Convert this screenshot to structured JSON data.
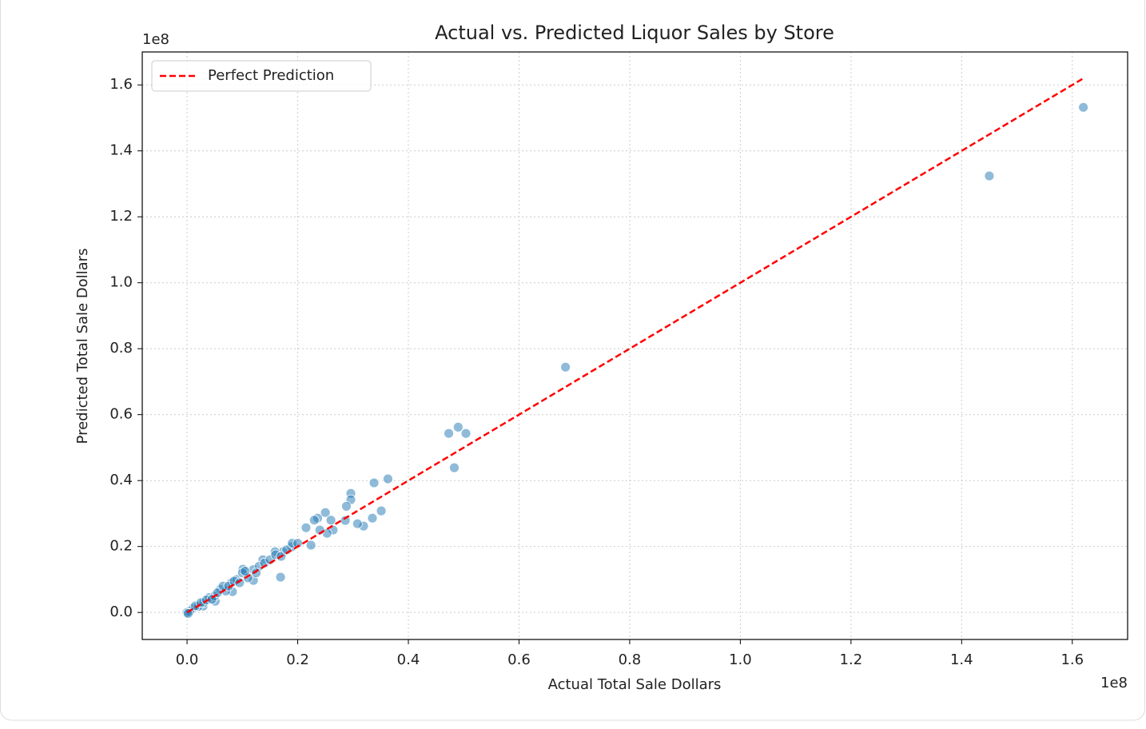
{
  "chart_data": {
    "type": "scatter",
    "title": "Actual vs. Predicted Liquor Sales by Store",
    "xlabel": "Actual Total Sale Dollars",
    "ylabel": "Predicted Total Sale Dollars",
    "x_offset_label": "1e8",
    "y_offset_label": "1e8",
    "color": "#1f77b4",
    "x": [
      1.62,
      1.45,
      0.684,
      0.473,
      0.49,
      0.504,
      0.483,
      0.363,
      0.338,
      0.351,
      0.335,
      0.319,
      0.308,
      0.296,
      0.296,
      0.288,
      0.286,
      0.264,
      0.25,
      0.253,
      0.236,
      0.224,
      0.215,
      0.169,
      0.189,
      0.173,
      0.159,
      0.137,
      0.12,
      0.101,
      0.082,
      0.051,
      0.029,
      0.01,
      0.02,
      0.03,
      0.04,
      0.05,
      0.06,
      0.07,
      0.08,
      0.09,
      0.1,
      0.11,
      0.12,
      0.13,
      0.14,
      0.15,
      0.16,
      0.17,
      0.18,
      0.19,
      0.2,
      0.23,
      0.24,
      0.26,
      0.005,
      0.0,
      0.002,
      0.015,
      0.025,
      0.035,
      0.045,
      0.055,
      0.065,
      0.075,
      0.085,
      0.095,
      0.105,
      0.125
    ],
    "values": [
      1.532,
      1.324,
      0.744,
      0.543,
      0.562,
      0.543,
      0.439,
      0.405,
      0.393,
      0.308,
      0.286,
      0.262,
      0.269,
      0.361,
      0.342,
      0.322,
      0.279,
      0.25,
      0.303,
      0.24,
      0.286,
      0.204,
      0.257,
      0.107,
      0.199,
      0.184,
      0.184,
      0.16,
      0.097,
      0.131,
      0.063,
      0.034,
      0.019,
      0.012,
      0.018,
      0.03,
      0.045,
      0.05,
      0.07,
      0.065,
      0.09,
      0.1,
      0.12,
      0.105,
      0.13,
      0.14,
      0.15,
      0.16,
      0.175,
      0.17,
      0.19,
      0.21,
      0.21,
      0.28,
      0.25,
      0.28,
      0.004,
      0.0,
      -0.003,
      0.02,
      0.03,
      0.038,
      0.04,
      0.06,
      0.08,
      0.08,
      0.095,
      0.09,
      0.125,
      0.12
    ],
    "series": [
      {
        "name": "Perfect Prediction",
        "type": "line",
        "color": "#ff0000",
        "x": [
          0,
          1.62
        ],
        "values": [
          0,
          1.62
        ]
      }
    ],
    "xlim": [
      -0.081,
      1.7
    ],
    "ylim": [
      -0.082,
      1.7
    ],
    "xticks": [
      {
        "value": 0,
        "label": "0.0"
      },
      0.2,
      0.4,
      0.6,
      0.8,
      {
        "value": 1,
        "label": "1.0"
      },
      1.2,
      1.4,
      1.6
    ],
    "yticks": [
      {
        "value": 0,
        "label": "0.0"
      },
      0.2,
      0.4,
      0.6,
      0.8,
      {
        "value": 1,
        "label": "1.0"
      },
      1.2,
      1.4,
      1.6
    ],
    "grid": true,
    "legend": "upper left"
  }
}
